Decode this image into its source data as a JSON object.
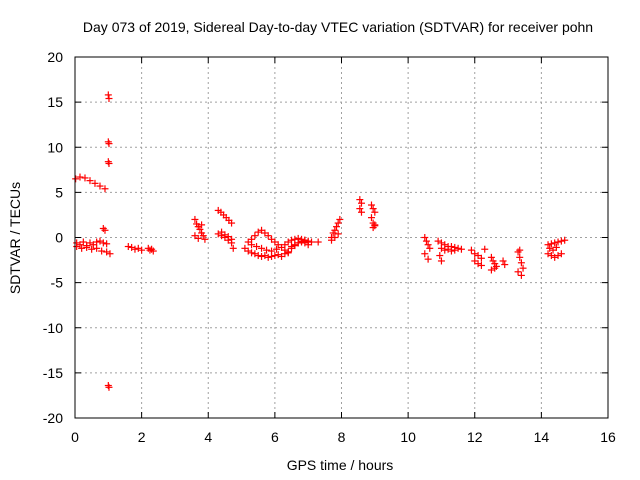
{
  "chart_data": {
    "type": "scatter",
    "title": "Day 073 of 2019, Sidereal Day-to-day VTEC variation (SDTVAR) for receiver pohn",
    "xlabel": "GPS time / hours",
    "ylabel": "SDTVAR / TECUs",
    "xlim": [
      0,
      16
    ],
    "ylim": [
      -20,
      20
    ],
    "xticks": [
      0,
      2,
      4,
      6,
      8,
      10,
      12,
      14,
      16
    ],
    "yticks": [
      -20,
      -15,
      -10,
      -5,
      0,
      5,
      10,
      15,
      20
    ],
    "grid": true,
    "marker": "plus",
    "color": "#ff0000",
    "series": [
      {
        "name": "SDTVAR",
        "segments": [
          {
            "x": [
              0.02,
              0.15,
              0.3,
              0.45,
              0.6,
              0.75,
              0.9
            ],
            "y": [
              6.5,
              6.7,
              6.6,
              6.3,
              6.0,
              5.7,
              5.4
            ]
          },
          {
            "x": [
              0.05,
              0.15,
              0.25,
              0.35,
              0.45,
              0.55,
              0.65,
              0.75,
              0.85,
              0.95
            ],
            "y": [
              -0.6,
              -0.8,
              -0.5,
              -0.9,
              -0.6,
              -0.8,
              -0.5,
              -0.4,
              -0.6,
              -0.7
            ]
          },
          {
            "x": [
              0.05,
              0.2,
              0.35,
              0.5,
              0.65,
              0.8,
              0.95,
              1.05
            ],
            "y": [
              -1.0,
              -1.2,
              -1.1,
              -1.3,
              -1.2,
              -1.5,
              -1.6,
              -1.8
            ]
          },
          {
            "x": [
              0.85,
              0.9
            ],
            "y": [
              1.0,
              0.8
            ]
          },
          {
            "x": [
              1.0,
              1.02,
              1.0,
              1.02,
              1.0,
              1.02
            ],
            "y": [
              15.8,
              15.4,
              10.6,
              10.4,
              8.4,
              8.2
            ]
          },
          {
            "x": [
              1.0,
              1.02
            ],
            "y": [
              -16.4,
              -16.6
            ]
          },
          {
            "x": [
              1.6,
              1.7,
              1.8,
              1.9,
              2.0
            ],
            "y": [
              -1.0,
              -1.1,
              -1.3,
              -1.2,
              -1.4
            ]
          },
          {
            "x": [
              2.2,
              2.25,
              2.3,
              2.35
            ],
            "y": [
              -1.2,
              -1.4,
              -1.3,
              -1.5
            ]
          },
          {
            "x": [
              3.6,
              3.65,
              3.7,
              3.75,
              3.8,
              3.85,
              3.9
            ],
            "y": [
              2.0,
              1.5,
              1.2,
              0.9,
              1.4,
              0.2,
              -0.2
            ]
          },
          {
            "x": [
              3.6,
              3.7,
              3.8
            ],
            "y": [
              0.2,
              -0.1,
              0.5
            ]
          },
          {
            "x": [
              4.3,
              4.38,
              4.46,
              4.54,
              4.62,
              4.7
            ],
            "y": [
              3.0,
              2.8,
              2.5,
              2.2,
              1.9,
              1.6
            ]
          },
          {
            "x": [
              4.3,
              4.4,
              4.5,
              4.6,
              4.7,
              4.75
            ],
            "y": [
              0.4,
              0.2,
              0.0,
              -0.3,
              -0.6,
              -1.2
            ]
          },
          {
            "x": [
              4.4,
              4.5,
              4.6,
              4.7
            ],
            "y": [
              0.6,
              0.3,
              0.1,
              -0.2
            ]
          },
          {
            "x": [
              5.2,
              5.3,
              5.4,
              5.5,
              5.6,
              5.7,
              5.8,
              5.9,
              6.0,
              6.1,
              6.2,
              6.3,
              6.4
            ],
            "y": [
              -0.5,
              -0.2,
              0.2,
              0.6,
              0.8,
              0.5,
              0.2,
              -0.2,
              -0.5,
              -0.8,
              -1.1,
              -1.4,
              -1.6
            ]
          },
          {
            "x": [
              5.1,
              5.2,
              5.3,
              5.4,
              5.5,
              5.6,
              5.7,
              5.8,
              5.9,
              6.0,
              6.1,
              6.2,
              6.3,
              6.4
            ],
            "y": [
              -1.2,
              -1.5,
              -1.7,
              -1.8,
              -2.0,
              -2.1,
              -2.0,
              -2.2,
              -2.1,
              -2.0,
              -1.9,
              -2.1,
              -1.8,
              -1.7
            ]
          },
          {
            "x": [
              5.3,
              5.45,
              5.6,
              5.75,
              5.9,
              6.05
            ],
            "y": [
              -0.8,
              -1.0,
              -1.2,
              -1.4,
              -1.5,
              -1.3
            ]
          },
          {
            "x": [
              6.4,
              6.5,
              6.6,
              6.7,
              6.8,
              6.9,
              7.0
            ],
            "y": [
              -1.6,
              -1.2,
              -0.9,
              -0.6,
              -0.4,
              -0.3,
              -0.5
            ]
          },
          {
            "x": [
              6.3,
              6.4,
              6.5,
              6.6,
              6.7,
              6.8,
              6.9,
              7.0,
              7.1
            ],
            "y": [
              -0.8,
              -0.5,
              -0.3,
              -0.2,
              -0.1,
              -0.2,
              -0.3,
              -0.4,
              -0.5
            ]
          },
          {
            "x": [
              6.5,
              6.6,
              6.7,
              6.8,
              6.9,
              7.0
            ],
            "y": [
              -1.0,
              -0.8,
              -0.6,
              -0.5,
              -0.6,
              -0.8
            ]
          },
          {
            "x": [
              7.3
            ],
            "y": [
              -0.5
            ]
          },
          {
            "x": [
              7.7,
              7.75,
              7.8,
              7.85,
              7.9,
              7.95
            ],
            "y": [
              0.0,
              0.5,
              0.8,
              1.2,
              1.6,
              2.0
            ]
          },
          {
            "x": [
              7.7,
              7.8,
              7.9
            ],
            "y": [
              -0.3,
              0.0,
              0.4
            ]
          },
          {
            "x": [
              8.55,
              8.6,
              8.55,
              8.6
            ],
            "y": [
              4.2,
              3.8,
              3.2,
              2.8
            ]
          },
          {
            "x": [
              8.9,
              8.95,
              9.0,
              8.9,
              8.95,
              9.0,
              8.95,
              9.0
            ],
            "y": [
              3.6,
              3.2,
              2.8,
              2.2,
              1.6,
              1.4,
              1.1,
              1.3
            ]
          },
          {
            "x": [
              10.5,
              10.55,
              10.6,
              10.65,
              10.5,
              10.6
            ],
            "y": [
              0.0,
              -0.4,
              -0.8,
              -1.2,
              -1.8,
              -2.4
            ]
          },
          {
            "x": [
              10.9,
              11.0,
              11.1,
              11.2,
              11.3,
              11.4,
              11.5,
              11.6
            ],
            "y": [
              -0.4,
              -0.6,
              -0.8,
              -1.0,
              -1.0,
              -1.1,
              -1.2,
              -1.3
            ]
          },
          {
            "x": [
              11.0,
              11.1,
              11.2,
              11.3,
              11.4
            ],
            "y": [
              -1.2,
              -1.4,
              -1.3,
              -1.5,
              -1.4
            ]
          },
          {
            "x": [
              10.95,
              11.0
            ],
            "y": [
              -2.0,
              -2.6
            ]
          },
          {
            "x": [
              11.9,
              12.0,
              12.1,
              12.2
            ],
            "y": [
              -1.4,
              -1.8,
              -2.0,
              -2.3
            ]
          },
          {
            "x": [
              12.0,
              12.1,
              12.2,
              12.3
            ],
            "y": [
              -2.6,
              -2.9,
              -3.1,
              -1.3
            ]
          },
          {
            "x": [
              12.5,
              12.55,
              12.6,
              12.65,
              12.5,
              12.6
            ],
            "y": [
              -2.2,
              -2.6,
              -2.9,
              -3.2,
              -3.6,
              -3.4
            ]
          },
          {
            "x": [
              12.85,
              12.9
            ],
            "y": [
              -2.6,
              -3.0
            ]
          },
          {
            "x": [
              13.3,
              13.35,
              13.4,
              13.45,
              13.3,
              13.4,
              13.35
            ],
            "y": [
              -1.6,
              -2.2,
              -2.8,
              -3.4,
              -3.8,
              -4.2,
              -1.4
            ]
          },
          {
            "x": [
              14.2,
              14.3,
              14.4,
              14.5,
              14.6,
              14.7
            ],
            "y": [
              -0.8,
              -0.7,
              -0.6,
              -0.5,
              -0.4,
              -0.3
            ]
          },
          {
            "x": [
              14.2,
              14.3,
              14.4,
              14.5,
              14.6
            ],
            "y": [
              -1.8,
              -2.0,
              -2.2,
              -2.0,
              -1.8
            ]
          },
          {
            "x": [
              14.25,
              14.35,
              14.45
            ],
            "y": [
              -1.2,
              -1.4,
              -1.1
            ]
          }
        ]
      }
    ]
  }
}
